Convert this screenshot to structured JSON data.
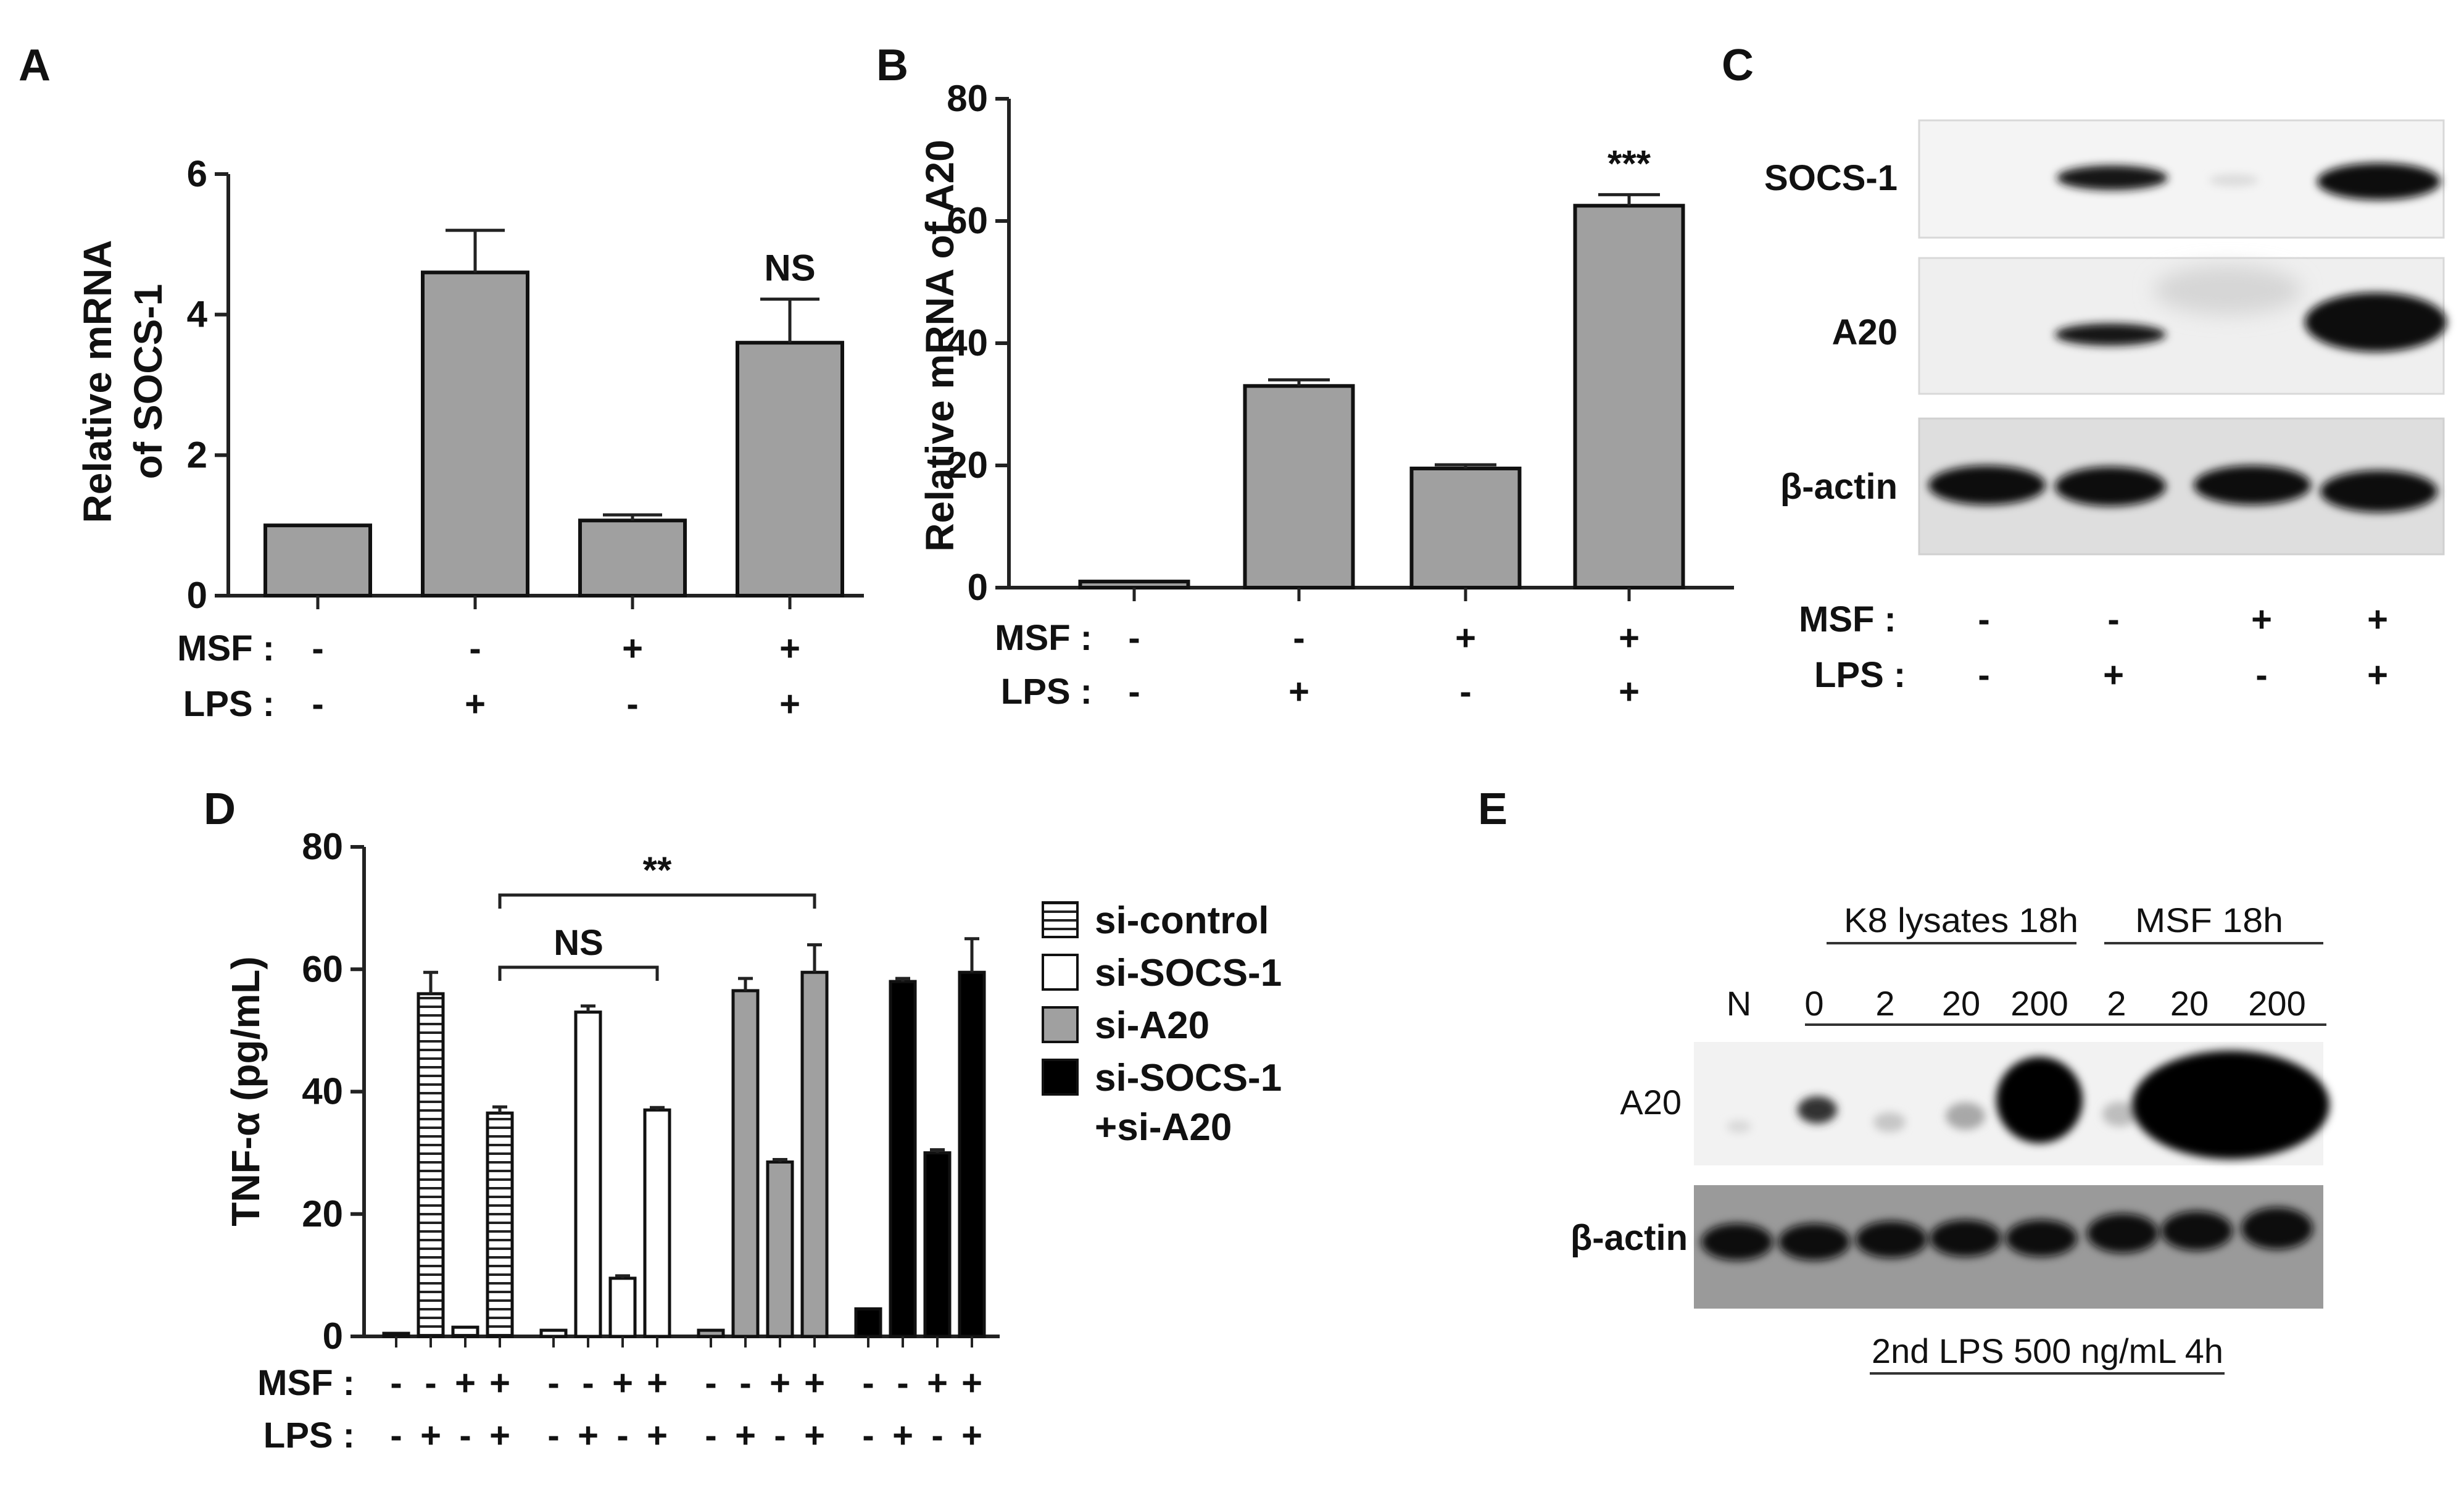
{
  "colors": {
    "gray_bar": "#a0a0a0",
    "black": "#000000",
    "white": "#ffffff"
  },
  "panels": [
    {
      "id": "A",
      "label": "A"
    },
    {
      "id": "B",
      "label": "B"
    },
    {
      "id": "C",
      "label": "C"
    },
    {
      "id": "D",
      "label": "D"
    },
    {
      "id": "E",
      "label": "E"
    }
  ],
  "chart_data": [
    {
      "panel": "A",
      "type": "bar",
      "ylabel_lines": [
        "Relative mRNA",
        "of SOCS-1"
      ],
      "ylim": [
        0,
        6
      ],
      "yticks": [
        "0",
        "2",
        "4",
        "6"
      ],
      "values": [
        1.0,
        4.6,
        1.07,
        3.6
      ],
      "errors": [
        0,
        0.6,
        0.08,
        0.62
      ],
      "annotations": [
        "",
        "",
        "",
        "NS"
      ],
      "conditions": [
        {
          "name": "MSF :",
          "values": [
            "-",
            "-",
            "+",
            "+"
          ]
        },
        {
          "name": "LPS :",
          "values": [
            "-",
            "+",
            "-",
            "+"
          ]
        }
      ]
    },
    {
      "panel": "B",
      "type": "bar",
      "ylabel": "Relative mRNA of A20",
      "ylim": [
        0,
        80
      ],
      "yticks": [
        "0",
        "20",
        "40",
        "60",
        "80"
      ],
      "values": [
        1.0,
        33.0,
        19.5,
        62.5
      ],
      "errors": [
        0,
        1.0,
        0.6,
        1.8
      ],
      "annotations": [
        "",
        "",
        "",
        "***"
      ],
      "conditions": [
        {
          "name": "MSF :",
          "values": [
            "-",
            "-",
            "+",
            "+"
          ]
        },
        {
          "name": "LPS :",
          "values": [
            "-",
            "+",
            "-",
            "+"
          ]
        }
      ]
    },
    {
      "panel": "D",
      "type": "bar",
      "ylabel": "TNF-α (pg/mL)",
      "ylim": [
        0,
        80
      ],
      "yticks": [
        "0",
        "20",
        "40",
        "60",
        "80"
      ],
      "legend_position": "right",
      "series": [
        {
          "name": "si-control",
          "pattern": "hatched",
          "values": [
            0.5,
            56,
            1.5,
            36.5
          ],
          "errors": [
            0,
            3.5,
            0,
            1.0
          ]
        },
        {
          "name": "si-SOCS-1",
          "pattern": "white",
          "values": [
            1.0,
            53,
            9.5,
            37
          ],
          "errors": [
            0,
            1.0,
            0.4,
            0.4
          ]
        },
        {
          "name": "si-A20",
          "pattern": "gray",
          "values": [
            1.0,
            56.5,
            28.5,
            59.5
          ],
          "errors": [
            0,
            2.0,
            0.4,
            4.5
          ]
        },
        {
          "name": "si-SOCS-1 +si-A20",
          "name_lines": [
            "si-SOCS-1",
            "+si-A20"
          ],
          "pattern": "black",
          "values": [
            4.5,
            58,
            30,
            59.5
          ],
          "errors": [
            0,
            0.5,
            0.5,
            5.5
          ]
        }
      ],
      "conditions": [
        {
          "name": "MSF :",
          "values": [
            "-",
            "-",
            "+",
            "+"
          ]
        },
        {
          "name": "LPS :",
          "values": [
            "-",
            "+",
            "-",
            "+"
          ]
        }
      ],
      "brackets": [
        {
          "label": "**",
          "from_series": 0,
          "from_bar": 3,
          "to_series": 2,
          "to_bar": 3
        },
        {
          "label": "NS",
          "from_series": 0,
          "from_bar": 3,
          "to_series": 1,
          "to_bar": 3
        }
      ]
    }
  ],
  "blot_c": {
    "rows": [
      "SOCS-1",
      "A20",
      "β-actin"
    ],
    "conditions": [
      {
        "name": "MSF :",
        "values": [
          "-",
          "-",
          "+",
          "+"
        ]
      },
      {
        "name": "LPS :",
        "values": [
          "-",
          "+",
          "-",
          "+"
        ]
      }
    ]
  },
  "blot_e": {
    "rows": [
      "A20",
      "β-actin"
    ],
    "lanes": [
      "N",
      "0",
      "2",
      "20",
      "200",
      "2",
      "20",
      "200"
    ],
    "group_labels": [
      "K8 lysates 18h",
      "MSF 18h"
    ],
    "bottom_label": "2nd LPS 500 ng/mL 4h"
  }
}
